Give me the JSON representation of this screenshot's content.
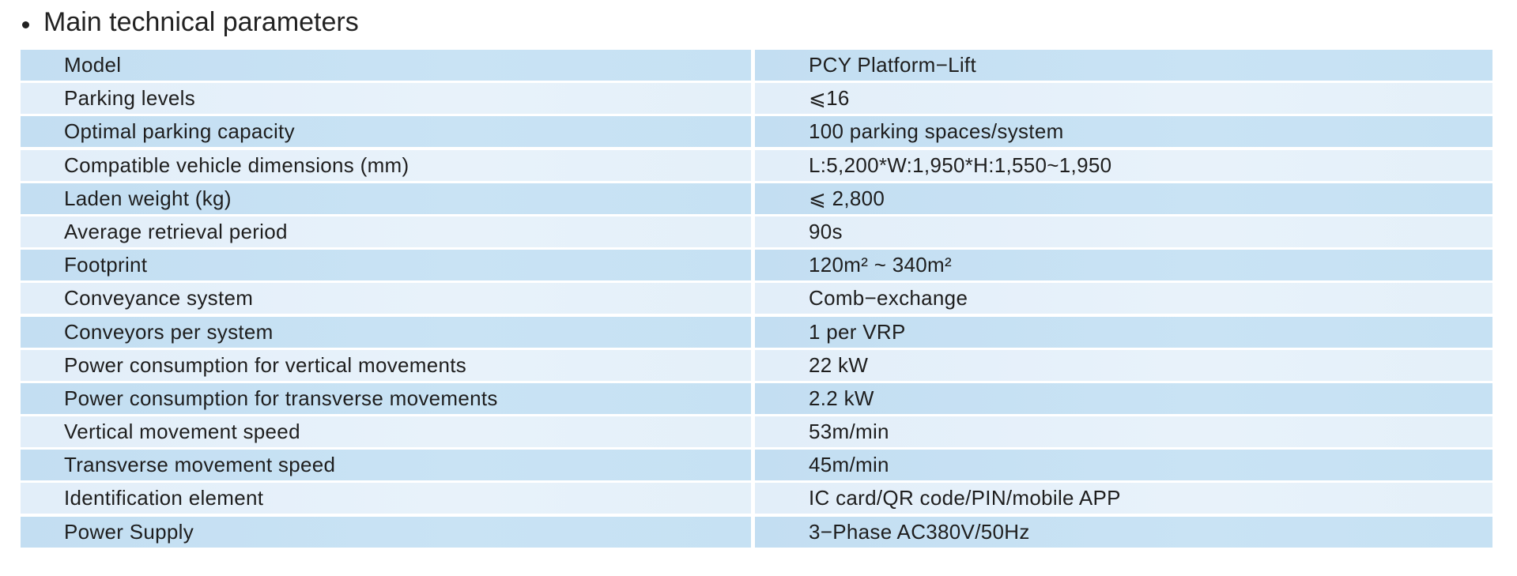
{
  "title": "Main  technical parameters",
  "colors": {
    "row_dark": "#c5e0f3",
    "row_light": "#e5f0f9"
  },
  "rows": [
    {
      "label": "Model",
      "value": "PCY Platform−Lift"
    },
    {
      "label": "Parking levels",
      "value": "⩽16"
    },
    {
      "label": "Optimal parking capacity",
      "value": "100 parking spaces/system"
    },
    {
      "label": "Compatible vehicle dimensions (mm)",
      "value": "L:5,200*W:1,950*H:1,550~1,950"
    },
    {
      "label": "Laden weight (kg)",
      "value": "⩽ 2,800"
    },
    {
      "label": "Average retrieval period",
      "value": "90s"
    },
    {
      "label": "Footprint",
      "value": "120m² ~ 340m²"
    },
    {
      "label": "Conveyance system",
      "value": "Comb−exchange"
    },
    {
      "label": "Conveyors per system",
      "value": "1 per VRP"
    },
    {
      "label": "Power consumption for vertical movements",
      "value": "22 kW"
    },
    {
      "label": "Power consumption for transverse movements",
      "value": "2.2 kW"
    },
    {
      "label": "Vertical movement speed",
      "value": "53m/min"
    },
    {
      "label": "Transverse movement speed",
      "value": "45m/min"
    },
    {
      "label": "Identification element",
      "value": "IC card/QR code/PIN/mobile APP"
    },
    {
      "label": "Power Supply",
      "value": "3−Phase AC380V/50Hz"
    }
  ]
}
